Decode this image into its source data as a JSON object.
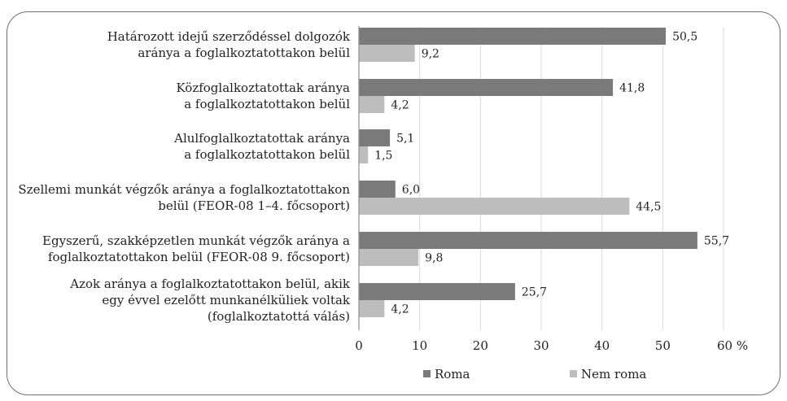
{
  "chart_data": {
    "type": "bar",
    "orientation": "horizontal",
    "categories": [
      [
        "Határozott idejű szerződéssel dolgozók",
        "aránya a foglalkoztatottakon belül"
      ],
      [
        "Közfoglalkoztatottak aránya",
        "a foglalkoztatottakon belül"
      ],
      [
        "Alulfoglalkoztatottak aránya",
        "a foglalkoztatottakon belül"
      ],
      [
        "Szellemi munkát végzők aránya a foglalkoztatottakon",
        "belül (FEOR-08 1–4. főcsoport)"
      ],
      [
        "Egyszerű, szakképzetlen munkát végzők aránya a",
        "foglalkoztatottakon belül (FEOR-08 9. főcsoport)"
      ],
      [
        "Azok aránya a foglalkoztatottakon belül, akik",
        "egy évvel ezelőtt munkanélküliek voltak",
        "(foglalkoztatottá válás)"
      ]
    ],
    "series": [
      {
        "name": "Roma",
        "color": "#7a7a7a",
        "values": [
          50.5,
          41.8,
          5.1,
          6.0,
          55.7,
          25.7
        ],
        "labels": [
          "50,5",
          "41,8",
          "5,1",
          "6,0",
          "55,7",
          "25,7"
        ]
      },
      {
        "name": "Nem roma",
        "color": "#bdbdbd",
        "values": [
          9.2,
          4.2,
          1.5,
          44.5,
          9.8,
          4.2
        ],
        "labels": [
          "9,2",
          "4,2",
          "1,5",
          "44,5",
          "9,8",
          "4,2"
        ]
      }
    ],
    "xlim": [
      0,
      60
    ],
    "x_ticks": [
      0,
      10,
      20,
      30,
      40,
      50,
      60
    ],
    "x_tick_labels": [
      "0",
      "10",
      "20",
      "30",
      "40",
      "50",
      "60 %"
    ],
    "grid": true,
    "legend_position": "bottom"
  }
}
